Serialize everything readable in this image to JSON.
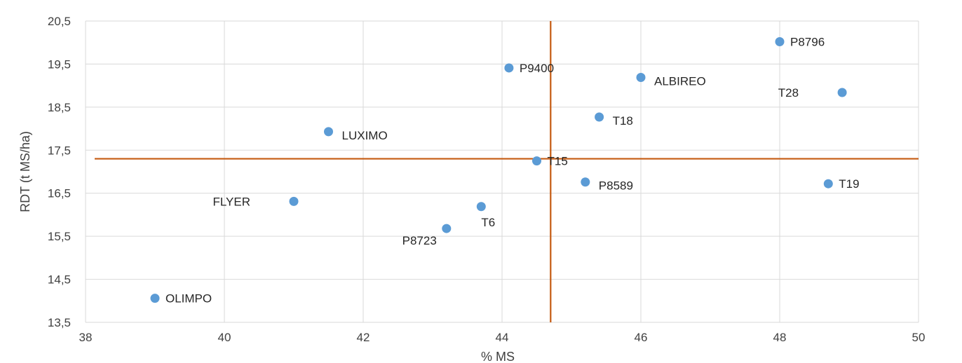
{
  "chart_data": {
    "type": "scatter",
    "title": "",
    "xlabel": "% MS",
    "ylabel": "RDT (t MS/ha)",
    "xlim": [
      38,
      50
    ],
    "ylim": [
      13.5,
      20.5
    ],
    "xticks": [
      38,
      40,
      42,
      44,
      46,
      48,
      50
    ],
    "xtick_labels": [
      "38",
      "40",
      "42",
      "44",
      "46",
      "48",
      "50"
    ],
    "yticks": [
      13.5,
      14.5,
      15.5,
      16.5,
      17.5,
      18.5,
      19.5,
      20.5
    ],
    "ytick_labels": [
      "13,5",
      "14,5",
      "15,5",
      "16,5",
      "17,5",
      "18,5",
      "19,5",
      "20,5"
    ],
    "grid": true,
    "marker_color": "#5b9bd5",
    "reference_line_color": "#c55a11",
    "reference_lines": {
      "x": 44.7,
      "y": 17.3
    },
    "points": [
      {
        "label": "P8796",
        "x": 48.0,
        "y": 20.02,
        "label_pos": "right"
      },
      {
        "label": "P9400",
        "x": 44.1,
        "y": 19.41,
        "label_pos": "right"
      },
      {
        "label": "ALBIREO",
        "x": 46.0,
        "y": 19.19,
        "label_pos": "below-right"
      },
      {
        "label": "T28",
        "x": 48.9,
        "y": 18.84,
        "label_pos": "left"
      },
      {
        "label": "T18",
        "x": 45.4,
        "y": 18.27,
        "label_pos": "below-right"
      },
      {
        "label": "LUXIMO",
        "x": 41.5,
        "y": 17.93,
        "label_pos": "below-right"
      },
      {
        "label": "T15",
        "x": 44.5,
        "y": 17.25,
        "label_pos": "right"
      },
      {
        "label": "P8589",
        "x": 45.2,
        "y": 16.76,
        "label_pos": "below-right"
      },
      {
        "label": "T19",
        "x": 48.7,
        "y": 16.72,
        "label_pos": "right"
      },
      {
        "label": "FLYER",
        "x": 41.0,
        "y": 16.31,
        "label_pos": "left"
      },
      {
        "label": "T6",
        "x": 43.7,
        "y": 16.19,
        "label_pos": "below"
      },
      {
        "label": "P8723",
        "x": 43.2,
        "y": 15.68,
        "label_pos": "below-left"
      },
      {
        "label": "OLIMPO",
        "x": 39.0,
        "y": 14.06,
        "label_pos": "right"
      }
    ]
  }
}
